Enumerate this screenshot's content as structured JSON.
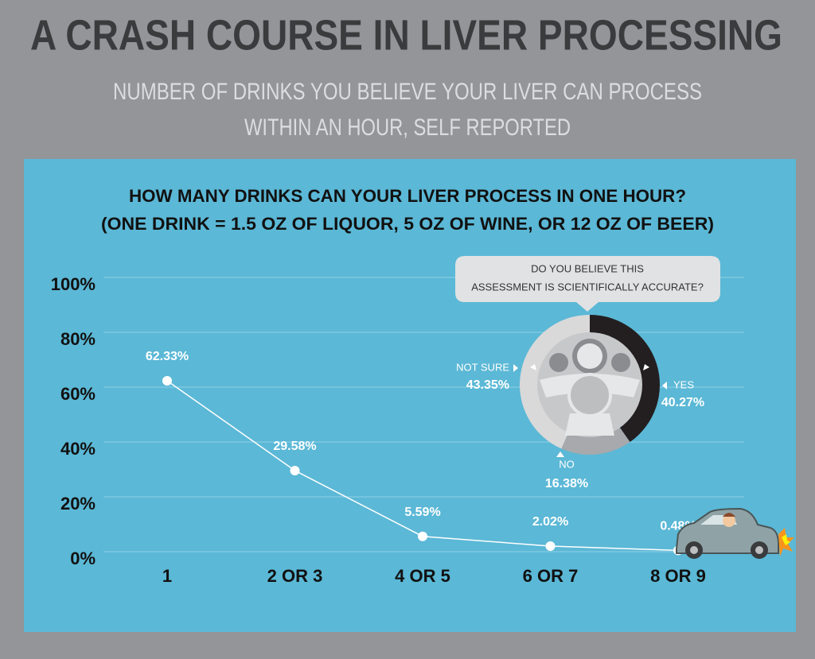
{
  "header": {
    "title": "A CRASH COURSE IN LIVER PROCESSING",
    "subtitle": [
      "NUMBER OF DRINKS YOU BELIEVE YOUR LIVER CAN PROCESS",
      "WITHIN AN HOUR, SELF REPORTED"
    ]
  },
  "chart_data": [
    {
      "type": "line",
      "title": [
        "HOW MANY DRINKS CAN YOUR LIVER PROCESS IN ONE HOUR?",
        "(ONE DRINK = 1.5 OZ OF LIQUOR, 5 OZ OF WINE, OR 12 OZ OF BEER)"
      ],
      "categories": [
        "1",
        "2 OR 3",
        "4 OR 5",
        "6 OR 7",
        "8 OR 9"
      ],
      "values": [
        62.33,
        29.58,
        5.59,
        2.02,
        0.48
      ],
      "value_labels": [
        "62.33%",
        "29.58%",
        "5.59%",
        "2.02%",
        "0.48%"
      ],
      "ylim": [
        0,
        100
      ],
      "yticks": [
        {
          "value": 0,
          "label": "0%"
        },
        {
          "value": 20,
          "label": "20%"
        },
        {
          "value": 40,
          "label": "40%"
        },
        {
          "value": 60,
          "label": "60%"
        },
        {
          "value": 80,
          "label": "80%"
        },
        {
          "value": 100,
          "label": "100%"
        }
      ],
      "grid": true,
      "color": "#ffffff"
    },
    {
      "type": "pie",
      "title": [
        "DO YOU BELIEVE THIS",
        "ASSESSMENT IS SCIENTIFICALLY ACCURATE?"
      ],
      "categories": [
        "YES",
        "NO",
        "NOT SURE"
      ],
      "values": [
        40.27,
        16.38,
        43.35
      ],
      "value_labels": [
        "40.27%",
        "16.38%",
        "43.35%"
      ],
      "colors": [
        "#231f20",
        "#a7a9ac",
        "#d9d9d9"
      ]
    }
  ]
}
